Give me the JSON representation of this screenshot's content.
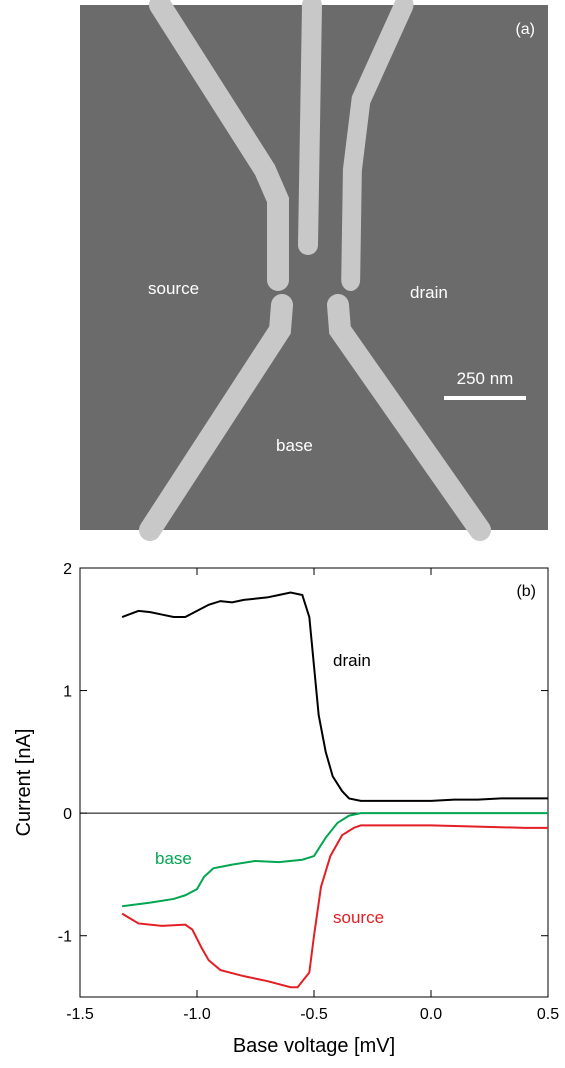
{
  "image_panel": {
    "panel_label": "(a)",
    "labels": [
      "source",
      "drain",
      "base"
    ],
    "scale_bar": "250 nm"
  },
  "chart_data": {
    "type": "line",
    "panel_label": "(b)",
    "x_label": "Base voltage [mV]",
    "y_label": "Current [nA]",
    "xlim": [
      -1.5,
      0.5
    ],
    "ylim": [
      -1.5,
      2
    ],
    "xticks": [
      -1.5,
      {
        "value": -1,
        "label": "-1.0"
      },
      -0.5,
      {
        "value": 0,
        "label": "0.0"
      },
      0.5
    ],
    "yticks": [
      -1,
      0,
      1,
      2
    ],
    "series": [
      {
        "name": "drain",
        "color": "#000000",
        "x": [
          -1.32,
          -1.25,
          -1.2,
          -1.15,
          -1.1,
          -1.05,
          -1.0,
          -0.95,
          -0.9,
          -0.85,
          -0.8,
          -0.75,
          -0.7,
          -0.65,
          -0.6,
          -0.55,
          -0.52,
          -0.5,
          -0.48,
          -0.45,
          -0.42,
          -0.38,
          -0.35,
          -0.3,
          -0.2,
          -0.1,
          0,
          0.1,
          0.2,
          0.3,
          0.4,
          0.5
        ],
        "values": [
          1.6,
          1.65,
          1.64,
          1.62,
          1.6,
          1.6,
          1.65,
          1.7,
          1.73,
          1.72,
          1.74,
          1.75,
          1.76,
          1.78,
          1.8,
          1.78,
          1.6,
          1.2,
          0.8,
          0.5,
          0.3,
          0.18,
          0.12,
          0.1,
          0.1,
          0.1,
          0.1,
          0.11,
          0.11,
          0.12,
          0.12,
          0.12
        ]
      },
      {
        "name": "base",
        "color": "#00a651",
        "x": [
          -1.32,
          -1.2,
          -1.1,
          -1.05,
          -1.0,
          -0.97,
          -0.93,
          -0.85,
          -0.75,
          -0.65,
          -0.55,
          -0.5,
          -0.45,
          -0.4,
          -0.35,
          -0.3,
          0,
          0.5
        ],
        "values": [
          -0.76,
          -0.73,
          -0.7,
          -0.67,
          -0.62,
          -0.52,
          -0.45,
          -0.42,
          -0.39,
          -0.4,
          -0.38,
          -0.35,
          -0.2,
          -0.08,
          -0.02,
          0,
          0,
          0
        ]
      },
      {
        "name": "source",
        "color": "#e31e24",
        "x": [
          -1.32,
          -1.25,
          -1.15,
          -1.05,
          -1.02,
          -0.98,
          -0.95,
          -0.9,
          -0.8,
          -0.7,
          -0.6,
          -0.57,
          -0.52,
          -0.5,
          -0.47,
          -0.43,
          -0.38,
          -0.33,
          -0.3,
          -0.2,
          0,
          0.2,
          0.4,
          0.5
        ],
        "values": [
          -0.82,
          -0.9,
          -0.92,
          -0.91,
          -0.95,
          -1.1,
          -1.2,
          -1.28,
          -1.33,
          -1.37,
          -1.42,
          -1.42,
          -1.3,
          -1.0,
          -0.6,
          -0.35,
          -0.18,
          -0.12,
          -0.1,
          -0.1,
          -0.1,
          -0.11,
          -0.12,
          -0.12
        ]
      }
    ]
  }
}
